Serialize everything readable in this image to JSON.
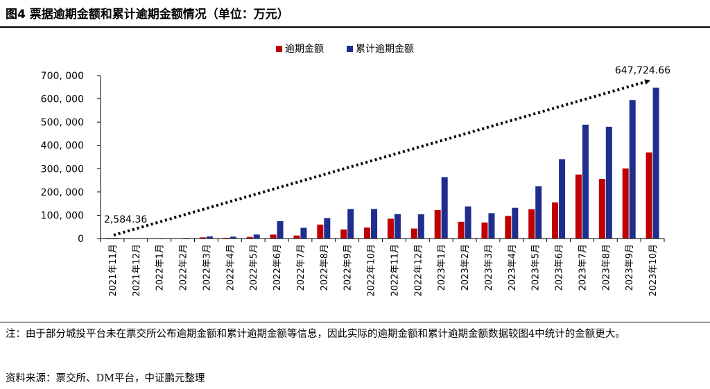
{
  "title": "图4  票据逾期金额和累计逾期金额情况（单位：万元）",
  "note": "注：由于部分城投平台未在票交所公布逾期金额和累计逾期金额等信息，因此实际的逾期金额和累计逾期金额数据较图4中统计的金额更大。",
  "source": "资料来源：票交所、DM平台，中证鹏元整理",
  "colors": {
    "series1": "#C00000",
    "series2": "#1F2E8E",
    "trend": "#000000"
  },
  "chart_data": {
    "type": "bar",
    "categories": [
      "2021年11月",
      "2021年12月",
      "2022年1月",
      "2022年2月",
      "2022年3月",
      "2022年4月",
      "2022年5月",
      "2022年6月",
      "2022年7月",
      "2022年8月",
      "2022年9月",
      "2022年10月",
      "2022年11月",
      "2022年12月",
      "2023年1月",
      "2023年2月",
      "2023年3月",
      "2023年4月",
      "2023年5月",
      "2023年6月",
      "2023年7月",
      "2023年8月",
      "2023年9月",
      "2023年10月"
    ],
    "series": [
      {
        "name": "逾期金额",
        "values": [
          2584.36,
          500,
          700,
          500,
          5000,
          3000,
          7000,
          17000,
          13000,
          60000,
          39000,
          47000,
          85000,
          43000,
          122000,
          72000,
          69000,
          97000,
          126000,
          155000,
          275000,
          256000,
          301000,
          370000
        ]
      },
      {
        "name": "累计逾期金额",
        "values": [
          2584.36,
          1500,
          2000,
          2500,
          9000,
          8000,
          17000,
          75000,
          46000,
          88000,
          127000,
          127000,
          105000,
          104000,
          264000,
          138000,
          109000,
          132000,
          225000,
          341000,
          489000,
          480000,
          595000,
          647724.66
        ]
      }
    ],
    "yticks": [
      "0",
      "100, 000",
      "200, 000",
      "300, 000",
      "400, 000",
      "500, 000",
      "600, 000",
      "700, 000"
    ],
    "ylim": [
      0,
      700000
    ],
    "legend_position": "top-center",
    "annotations": [
      {
        "text": "2,584.36",
        "category_index": 0,
        "value": 2584.36
      },
      {
        "text": "647,724.66",
        "category_index": 23,
        "value": 647724.66
      }
    ],
    "trendline": {
      "from_index": 0,
      "to_index": 23,
      "from_value": 2584.36,
      "to_value": 647724.66,
      "style": "dotted-arrow"
    }
  }
}
